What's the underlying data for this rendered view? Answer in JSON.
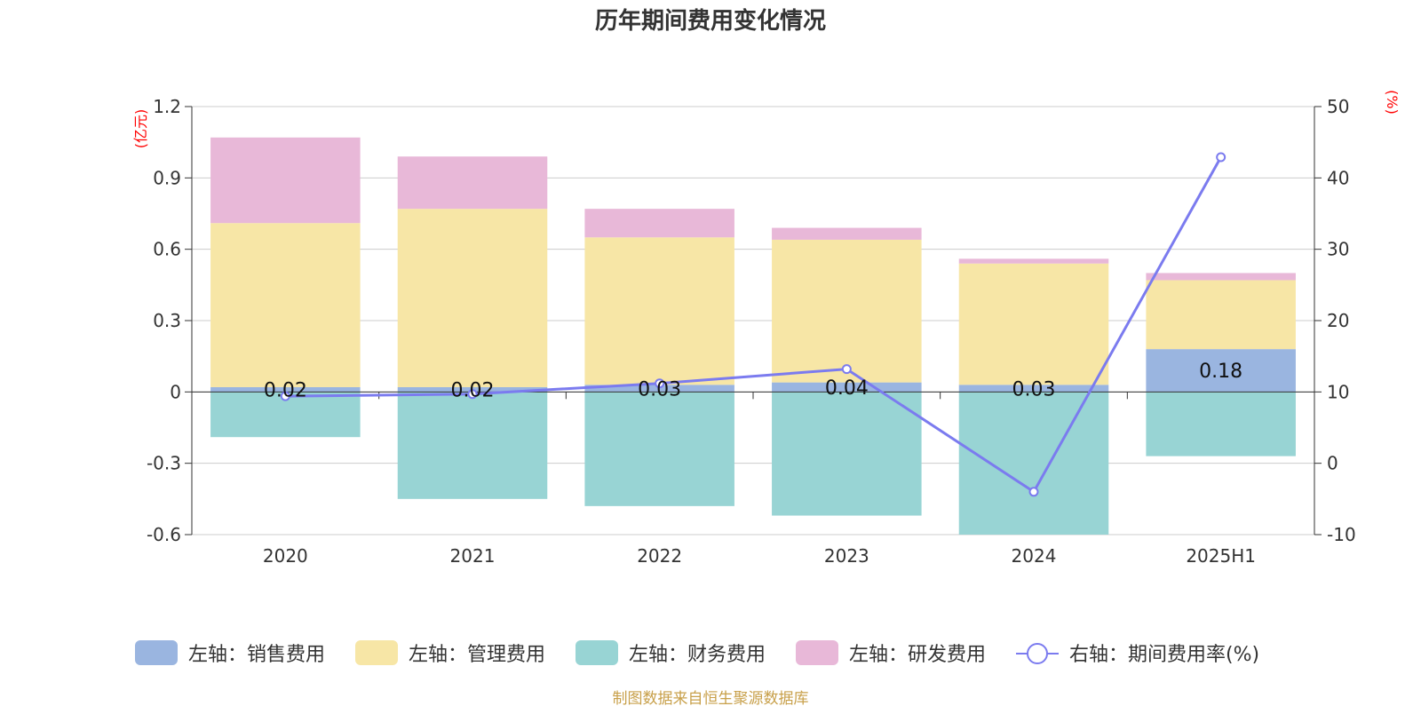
{
  "chart_data": {
    "type": "bar",
    "title": "历年期间费用变化情况",
    "left_axis_unit": "(亿元)",
    "right_axis_unit": "(%)",
    "categories": [
      "2020",
      "2021",
      "2022",
      "2023",
      "2024",
      "2025H1"
    ],
    "ylim_left": [
      -0.6,
      1.2
    ],
    "left_ticks": [
      "1.2",
      "0.9",
      "0.6",
      "0.3",
      "0",
      "-0.3",
      "-0.6"
    ],
    "ylim_right": [
      -10,
      50
    ],
    "right_ticks": [
      "50",
      "40",
      "30",
      "20",
      "10",
      "0",
      "-10"
    ],
    "stacked": true,
    "grid": true,
    "legend_position": "bottom",
    "series": [
      {
        "name": "左轴：销售费用",
        "axis": "left",
        "type": "bar",
        "color": "#9ab5e0",
        "values": [
          0.02,
          0.02,
          0.03,
          0.04,
          0.03,
          0.18
        ]
      },
      {
        "name": "左轴：管理费用",
        "axis": "left",
        "type": "bar",
        "color": "#f7e6a6",
        "values": [
          0.69,
          0.75,
          0.62,
          0.6,
          0.51,
          0.29
        ]
      },
      {
        "name": "左轴：财务费用",
        "axis": "left",
        "type": "bar",
        "color": "#98d4d4",
        "values": [
          -0.19,
          -0.45,
          -0.48,
          -0.52,
          -0.6,
          -0.27
        ]
      },
      {
        "name": "左轴：研发费用",
        "axis": "left",
        "type": "bar",
        "color": "#e8b8d8",
        "values": [
          0.36,
          0.22,
          0.12,
          0.05,
          0.02,
          0.03
        ]
      },
      {
        "name": "右轴：期间费用率(%)",
        "axis": "right",
        "type": "line",
        "color": "#7b7bef",
        "values": [
          9.4,
          9.7,
          11.2,
          13.2,
          -4.0,
          42.9
        ]
      }
    ],
    "data_labels": [
      "0.02",
      "0.02",
      "0.03",
      "0.04",
      "0.03",
      "0.18"
    ]
  },
  "source_note": "制图数据来自恒生聚源数据库"
}
